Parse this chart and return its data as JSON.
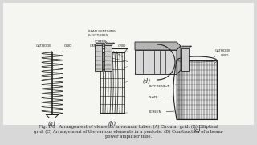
{
  "bg_color": "#d8d8d8",
  "fig_bg": "#f2f2f2",
  "caption_lines": [
    "Fig. 1-8   Arrangement of elements in vacuum tubes. (A) Circular grid. (B) Elliptical",
    "grid. (C) Arrangement of the various elements in a pentode. (D) Construction of a beam-",
    "power amplifier tube."
  ],
  "caption_fontsize": 3.8,
  "label_fontsize": 5.0,
  "annot_fontsize": 3.0,
  "label_a": "(a)",
  "label_b": "(b)",
  "label_c": "(c)",
  "label_d": "(d)",
  "draw_color": "#222222",
  "light_fill": "#cccccc",
  "mid_fill": "#aaaaaa",
  "dark_fill": "#888888"
}
